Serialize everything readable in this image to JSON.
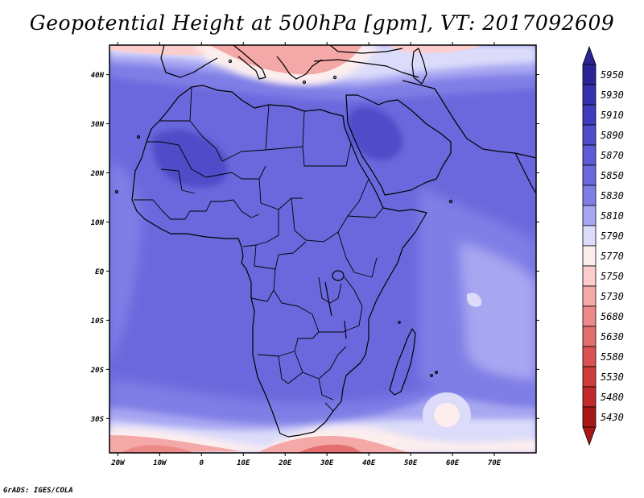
{
  "title": "Geopotential Height at 500hPa [gpm], VT: 2017092609",
  "credit": "GrADS: IGES/COLA",
  "map": {
    "projection": "latlon",
    "lon_range": [
      -22,
      80
    ],
    "lat_range": [
      -37,
      46
    ],
    "lat_ticks": [
      {
        "value": 40,
        "label": "40N"
      },
      {
        "value": 30,
        "label": "30N"
      },
      {
        "value": 20,
        "label": "20N"
      },
      {
        "value": 10,
        "label": "10N"
      },
      {
        "value": 0,
        "label": "EQ"
      },
      {
        "value": -10,
        "label": "10S"
      },
      {
        "value": -20,
        "label": "20S"
      },
      {
        "value": -30,
        "label": "30S"
      }
    ],
    "lon_ticks": [
      {
        "value": -20,
        "label": "20W"
      },
      {
        "value": -10,
        "label": "10W"
      },
      {
        "value": 0,
        "label": "0"
      },
      {
        "value": 10,
        "label": "10E"
      },
      {
        "value": 20,
        "label": "20E"
      },
      {
        "value": 30,
        "label": "30E"
      },
      {
        "value": 40,
        "label": "40E"
      },
      {
        "value": 50,
        "label": "50E"
      },
      {
        "value": 60,
        "label": "60E"
      },
      {
        "value": 70,
        "label": "70E"
      }
    ]
  },
  "colorbar": {
    "levels": [
      {
        "label": "5950",
        "color": "#2a2496"
      },
      {
        "label": "5930",
        "color": "#3530b0"
      },
      {
        "label": "5910",
        "color": "#3f3cbf"
      },
      {
        "label": "5890",
        "color": "#4f4cc9"
      },
      {
        "label": "5870",
        "color": "#5c5ad6"
      },
      {
        "label": "5850",
        "color": "#6a68dc"
      },
      {
        "label": "5830",
        "color": "#7f7ee6"
      },
      {
        "label": "5810",
        "color": "#a7a6f1"
      },
      {
        "label": "5790",
        "color": "#dcdcfa"
      },
      {
        "label": "5770",
        "color": "#fdeeee"
      },
      {
        "label": "5750",
        "color": "#fbcdcd"
      },
      {
        "label": "5730",
        "color": "#f5a8a8"
      },
      {
        "label": "5680",
        "color": "#ec8a8a"
      },
      {
        "label": "5630",
        "color": "#e46d6d"
      },
      {
        "label": "5580",
        "color": "#db5252"
      },
      {
        "label": "5530",
        "color": "#d03c3c"
      },
      {
        "label": "5480",
        "color": "#c12a2a"
      },
      {
        "label": "5430",
        "color": "#a81818"
      }
    ]
  },
  "colors": {
    "subtropical_high": "#6a68dc",
    "core_high": "#4f4cc9",
    "ocean": "#7f7ee6",
    "light": "#a7a6f1"
  }
}
